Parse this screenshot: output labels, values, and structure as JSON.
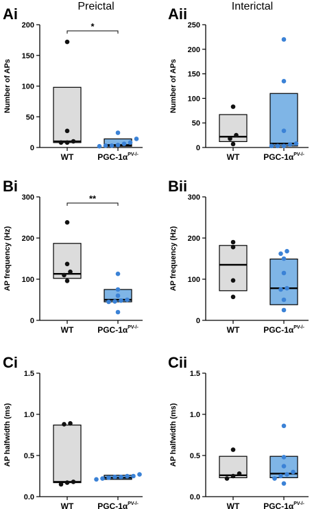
{
  "columns": {
    "left": "Preictal",
    "right": "Interictal"
  },
  "colors": {
    "wt_box": "#dcdcdc",
    "ko_box": "#7fb5e6",
    "wt_dot": "#111111",
    "ko_dot": "#3b82d6"
  },
  "chart_data": [
    {
      "panel": "Ai",
      "type": "box-dot",
      "ylabel": "Number of APs",
      "ylim": [
        0,
        200
      ],
      "yticks": [
        0,
        50,
        100,
        150,
        200
      ],
      "categories": [
        "WT",
        "PGC-1α"
      ],
      "cat_sup": [
        "",
        "PV-/-"
      ],
      "series": [
        {
          "box": [
            8,
            10,
            98
          ],
          "points": [
            172,
            27,
            10,
            8,
            8
          ]
        },
        {
          "box": [
            2,
            4,
            14
          ],
          "points": [
            24,
            14,
            8,
            6,
            4,
            3,
            3,
            2
          ]
        }
      ],
      "significance": "*"
    },
    {
      "panel": "Aii",
      "type": "box-dot",
      "ylabel": "Number of APs",
      "ylim": [
        0,
        250
      ],
      "yticks": [
        0,
        50,
        100,
        150,
        200,
        250
      ],
      "categories": [
        "WT",
        "PGC-1α"
      ],
      "cat_sup": [
        "",
        "PV-/-"
      ],
      "series": [
        {
          "box": [
            12,
            22,
            67
          ],
          "points": [
            83,
            25,
            18,
            7
          ]
        },
        {
          "box": [
            3,
            8,
            110
          ],
          "points": [
            220,
            135,
            34,
            8,
            6,
            3,
            3,
            3
          ]
        }
      ],
      "significance": ""
    },
    {
      "panel": "Bi",
      "type": "box-dot",
      "ylabel": "AP frequency (Hz)",
      "ylim": [
        0,
        300
      ],
      "yticks": [
        0,
        100,
        200,
        300
      ],
      "categories": [
        "WT",
        "PGC-1α"
      ],
      "cat_sup": [
        "",
        "PV-/-"
      ],
      "series": [
        {
          "box": [
            102,
            113,
            187
          ],
          "points": [
            238,
            137,
            118,
            110,
            96
          ]
        },
        {
          "box": [
            45,
            50,
            75
          ],
          "points": [
            113,
            75,
            60,
            50,
            48,
            46,
            45,
            20
          ]
        }
      ],
      "significance": "**"
    },
    {
      "panel": "Bii",
      "type": "box-dot",
      "ylabel": "AP frequency (Hz)",
      "ylim": [
        0,
        300
      ],
      "yticks": [
        0,
        100,
        200,
        300
      ],
      "categories": [
        "WT",
        "PGC-1α"
      ],
      "cat_sup": [
        "",
        "PV-/-"
      ],
      "series": [
        {
          "box": [
            72,
            135,
            182
          ],
          "points": [
            190,
            178,
            97,
            57
          ]
        },
        {
          "box": [
            38,
            78,
            149
          ],
          "points": [
            168,
            162,
            150,
            115,
            78,
            75,
            50,
            25
          ]
        }
      ],
      "significance": ""
    },
    {
      "panel": "Ci",
      "type": "box-dot",
      "ylabel": "AP halfwidth (ms)",
      "ylim": [
        0,
        1.5
      ],
      "yticks": [
        "0.0",
        "0.5",
        "1.0",
        "1.5"
      ],
      "categories": [
        "WT",
        "PGC-1α"
      ],
      "cat_sup": [
        "",
        "PV-/-"
      ],
      "series": [
        {
          "box": [
            0.17,
            0.18,
            0.87
          ],
          "points": [
            0.89,
            0.88,
            0.18,
            0.17,
            0.15
          ]
        },
        {
          "box": [
            0.21,
            0.23,
            0.26
          ],
          "points": [
            0.27,
            0.25,
            0.25,
            0.24,
            0.24,
            0.23,
            0.22,
            0.21
          ]
        }
      ],
      "significance": ""
    },
    {
      "panel": "Cii",
      "type": "box-dot",
      "ylabel": "AP halfwidth (ms)",
      "ylim": [
        0,
        1.5
      ],
      "yticks": [
        "0.0",
        "0.5",
        "1.0",
        "1.5"
      ],
      "categories": [
        "WT",
        "PGC-1α"
      ],
      "cat_sup": [
        "",
        "PV-/-"
      ],
      "series": [
        {
          "box": [
            0.23,
            0.26,
            0.49
          ],
          "points": [
            0.57,
            0.28,
            0.25,
            0.22
          ]
        },
        {
          "box": [
            0.23,
            0.28,
            0.49
          ],
          "points": [
            0.86,
            0.48,
            0.37,
            0.3,
            0.27,
            0.25,
            0.22,
            0.16
          ]
        }
      ],
      "significance": ""
    }
  ]
}
